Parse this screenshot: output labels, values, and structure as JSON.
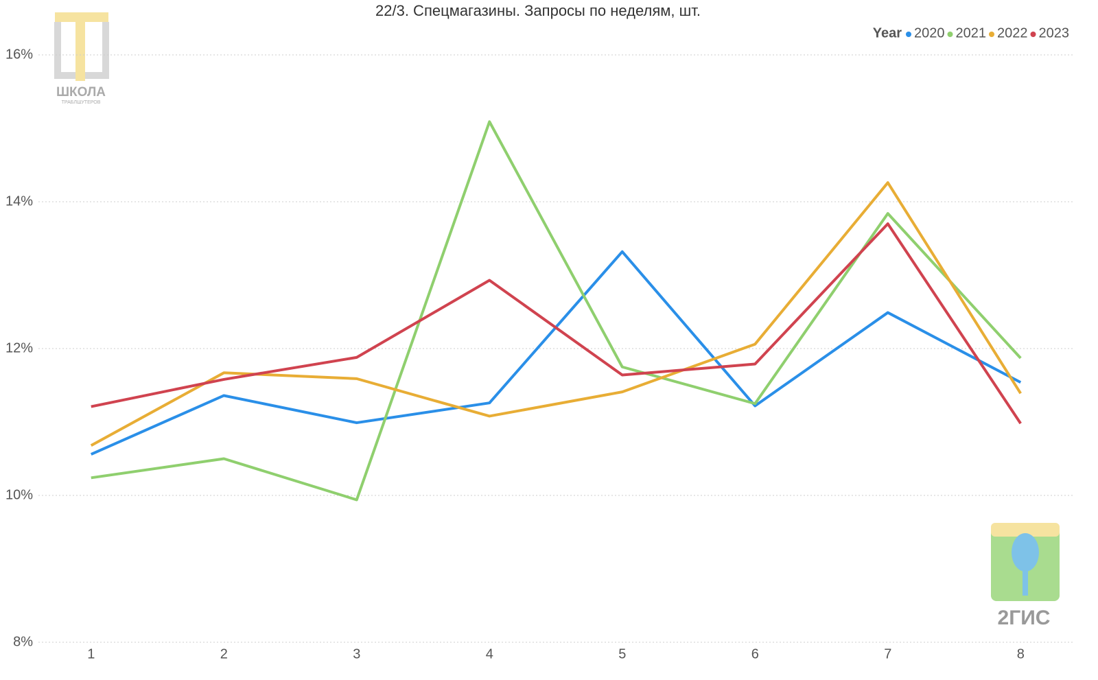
{
  "chart_data": {
    "type": "line",
    "title": "22/3. Спецмагазины. Запросы по неделям, шт.",
    "legend_title": "Year",
    "legend_position": "top-right",
    "categories": [
      "1",
      "2",
      "3",
      "4",
      "5",
      "6",
      "7",
      "8"
    ],
    "series": [
      {
        "name": "2020",
        "color": "#2a8fe8",
        "values": [
          10.56,
          11.36,
          10.99,
          11.26,
          13.32,
          11.22,
          12.49,
          11.54
        ]
      },
      {
        "name": "2021",
        "color": "#8fcf6e",
        "values": [
          10.24,
          10.5,
          9.94,
          15.09,
          11.75,
          11.25,
          13.84,
          11.87
        ]
      },
      {
        "name": "2022",
        "color": "#e8ad35",
        "values": [
          10.68,
          11.67,
          11.59,
          11.08,
          11.41,
          12.06,
          14.26,
          11.39
        ]
      },
      {
        "name": "2023",
        "color": "#d0434f",
        "values": [
          11.21,
          11.58,
          11.88,
          12.93,
          11.64,
          11.79,
          13.7,
          10.98
        ]
      }
    ],
    "ylim": [
      8,
      16
    ],
    "yticks": [
      {
        "value": 8,
        "label": "8%"
      },
      {
        "value": 10,
        "label": "10%"
      },
      {
        "value": 12,
        "label": "12%"
      },
      {
        "value": 14,
        "label": "14%"
      },
      {
        "value": 16,
        "label": "16%"
      }
    ],
    "grid": true,
    "watermarks": [
      "ШКОЛА",
      "ТРАБЛШУТЕРОВ",
      "2ГИС"
    ]
  }
}
